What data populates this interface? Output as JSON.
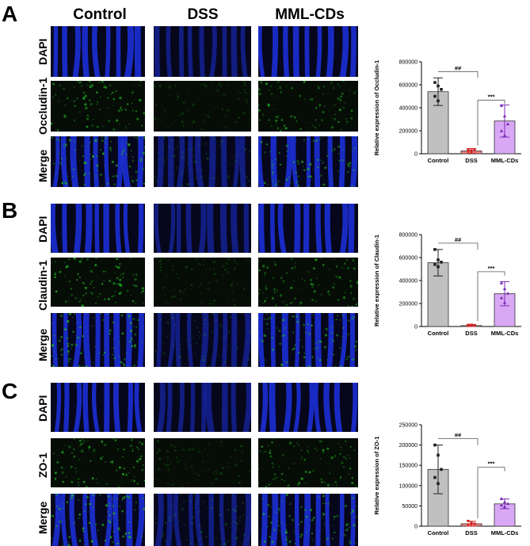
{
  "panels": [
    {
      "letter": "A",
      "rows": [
        "DAPI",
        "Occludin-1",
        "Merge"
      ]
    },
    {
      "letter": "B",
      "rows": [
        "DAPI",
        "Claudin-1",
        "Merge"
      ]
    },
    {
      "letter": "C",
      "rows": [
        "DAPI",
        "ZO-1",
        "Merge"
      ]
    }
  ],
  "columns": [
    "Control",
    "DSS",
    "MML-CDs"
  ],
  "colors": {
    "control_bar": "#c0c0c0",
    "dss_bar": "#f08080",
    "mml_bar": "#d9a8f5",
    "dapi": "#1c2fd6",
    "signal": "#22b022"
  },
  "chart_data": [
    {
      "type": "bar",
      "categories": [
        "Control",
        "DSS",
        "MML-CDs"
      ],
      "values": [
        540000,
        25000,
        285000
      ],
      "errors": [
        120000,
        20000,
        140000
      ],
      "points": [
        [
          620000,
          590000,
          560000,
          500000,
          460000
        ],
        [
          20000,
          25000,
          30000,
          35000,
          15000
        ],
        [
          420000,
          330000,
          260000,
          200000,
          160000
        ]
      ],
      "ylabel": "Relative expression of Occludin-1",
      "ylim": [
        0,
        800000
      ],
      "yticks": [
        "0",
        "200000",
        "400000",
        "600000",
        "800000"
      ],
      "sig": [
        "##",
        "***"
      ]
    },
    {
      "type": "bar",
      "categories": [
        "Control",
        "DSS",
        "MML-CDs"
      ],
      "values": [
        555000,
        8000,
        285000
      ],
      "errors": [
        115000,
        10000,
        105000
      ],
      "points": [
        [
          670000,
          580000,
          560000,
          540000,
          520000
        ],
        [
          10000,
          12000,
          8000,
          5000,
          6000
        ],
        [
          380000,
          330000,
          290000,
          250000,
          210000
        ]
      ],
      "ylabel": "Relative expression of Claudin-1",
      "ylim": [
        0,
        800000
      ],
      "yticks": [
        "0",
        "200000",
        "400000",
        "600000",
        "800000"
      ],
      "sig": [
        "##",
        "***"
      ]
    },
    {
      "type": "bar",
      "categories": [
        "Control",
        "DSS",
        "MML-CDs"
      ],
      "values": [
        140000,
        6000,
        55000
      ],
      "errors": [
        60000,
        6000,
        12000
      ],
      "points": [
        [
          200000,
          175000,
          140000,
          120000,
          105000
        ],
        [
          12000,
          8000,
          5000,
          3000,
          4000
        ],
        [
          68000,
          60000,
          56000,
          52000,
          48000
        ]
      ],
      "ylabel": "Relative expression of ZO-1",
      "ylim": [
        0,
        250000
      ],
      "yticks": [
        "0",
        "50000",
        "100000",
        "150000",
        "200000",
        "250000"
      ],
      "sig": [
        "##",
        "***"
      ]
    }
  ]
}
